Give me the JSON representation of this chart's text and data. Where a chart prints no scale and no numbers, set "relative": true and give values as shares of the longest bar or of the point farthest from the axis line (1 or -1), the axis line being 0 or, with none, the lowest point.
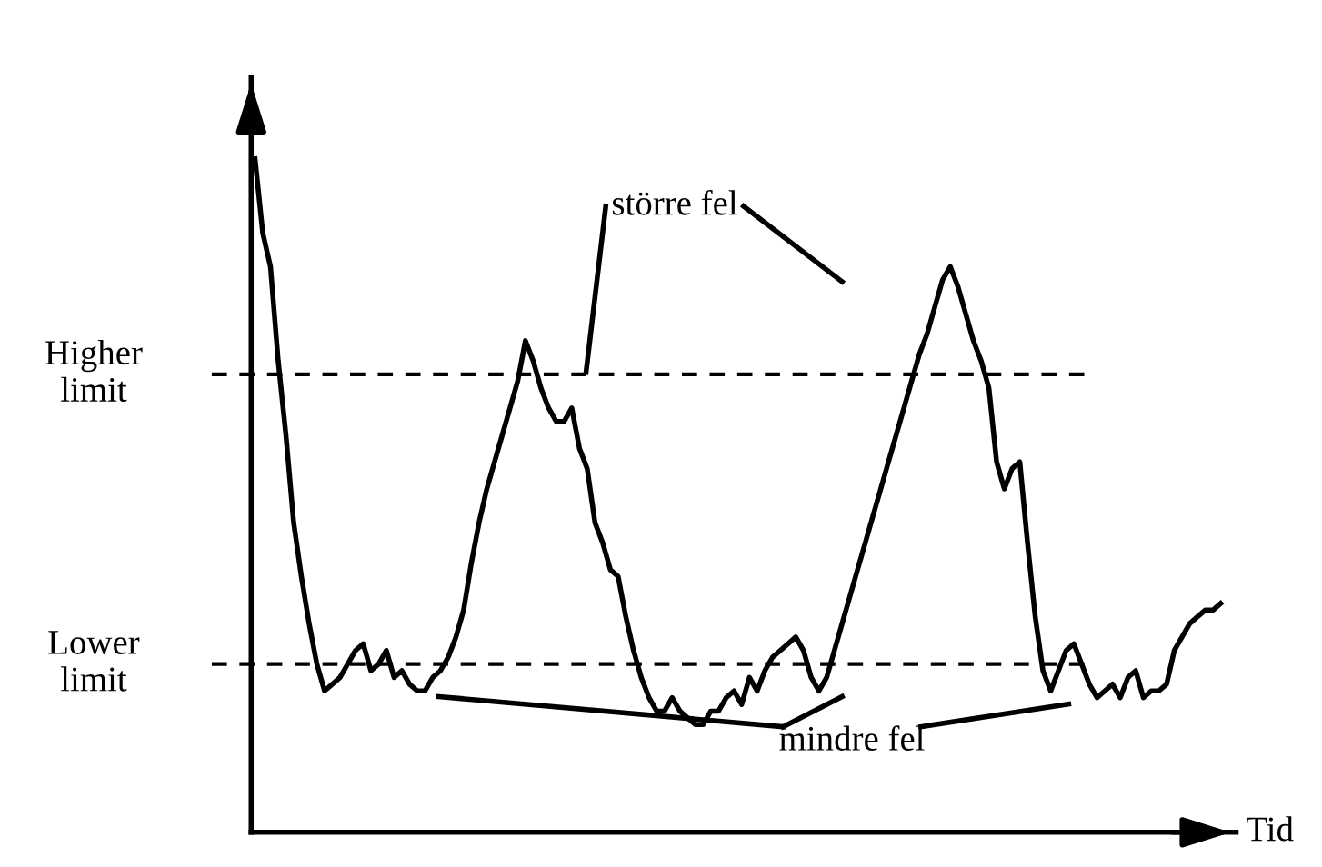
{
  "chart_data": {
    "type": "line",
    "relative": true,
    "xlabel": "Tid",
    "categories": [
      null,
      null,
      null,
      null,
      null,
      null,
      null,
      null,
      null,
      null,
      null,
      null,
      null,
      null,
      null,
      null,
      null,
      null,
      null,
      null,
      null,
      null,
      null,
      null,
      null,
      null,
      null,
      null,
      null,
      null,
      null,
      null,
      null,
      null,
      null,
      null,
      null,
      null,
      null,
      null,
      null,
      null,
      null,
      null,
      null,
      null,
      null,
      null,
      null,
      null,
      null,
      null,
      null,
      null,
      null,
      null,
      null,
      null,
      null,
      null,
      null,
      null,
      null,
      null,
      null,
      null,
      null,
      null,
      null,
      null,
      null,
      null,
      null,
      null,
      null,
      null,
      null,
      null,
      null,
      null,
      null,
      null,
      null,
      null,
      null,
      null,
      null,
      null,
      null,
      null,
      null,
      null,
      null,
      null,
      null,
      null,
      null,
      null,
      null,
      null,
      null,
      null,
      null,
      null,
      null,
      null,
      null,
      null,
      null,
      null,
      null,
      null,
      null,
      null,
      null,
      null,
      null,
      null,
      null,
      null,
      null,
      null,
      null,
      null,
      null,
      null
    ],
    "series": [
      {
        "color": "#000000",
        "values": [
          1.0,
          0.89,
          0.84,
          0.7,
          0.59,
          0.46,
          0.38,
          0.31,
          0.25,
          0.21,
          0.22,
          0.23,
          0.25,
          0.27,
          0.28,
          0.24,
          0.25,
          0.27,
          0.23,
          0.24,
          0.22,
          0.21,
          0.21,
          0.23,
          0.24,
          0.26,
          0.29,
          0.33,
          0.4,
          0.46,
          0.51,
          0.55,
          0.59,
          0.63,
          0.67,
          0.73,
          0.7,
          0.66,
          0.63,
          0.61,
          0.61,
          0.63,
          0.57,
          0.54,
          0.46,
          0.43,
          0.39,
          0.38,
          0.32,
          0.27,
          0.23,
          0.2,
          0.18,
          0.18,
          0.2,
          0.18,
          0.17,
          0.16,
          0.16,
          0.18,
          0.18,
          0.2,
          0.21,
          0.19,
          0.23,
          0.21,
          0.24,
          0.26,
          0.27,
          0.28,
          0.29,
          0.27,
          0.23,
          0.21,
          0.23,
          0.27,
          0.31,
          0.35,
          0.39,
          0.43,
          0.47,
          0.51,
          0.55,
          0.59,
          0.63,
          0.67,
          0.71,
          0.74,
          0.78,
          0.82,
          0.84,
          0.81,
          0.77,
          0.73,
          0.7,
          0.66,
          0.55,
          0.51,
          0.54,
          0.55,
          0.43,
          0.32,
          0.24,
          0.21,
          0.24,
          0.27,
          0.28,
          0.25,
          0.22,
          0.2,
          0.21,
          0.22,
          0.2,
          0.23,
          0.24,
          0.2,
          0.21,
          0.21,
          0.22,
          0.27,
          0.29,
          0.31,
          0.32,
          0.33,
          0.33,
          0.34
        ]
      }
    ],
    "ref_lines": [
      {
        "axis": "y",
        "value": 0.68,
        "label": "Higher\nlimit",
        "color": "#000000",
        "line_style": "dashed"
      },
      {
        "axis": "y",
        "value": 0.25,
        "label": "Lower\nlimit",
        "color": "#000000",
        "line_style": "dashed"
      }
    ],
    "annotations": [
      "större fel",
      "mindre fel"
    ],
    "legend": false
  }
}
